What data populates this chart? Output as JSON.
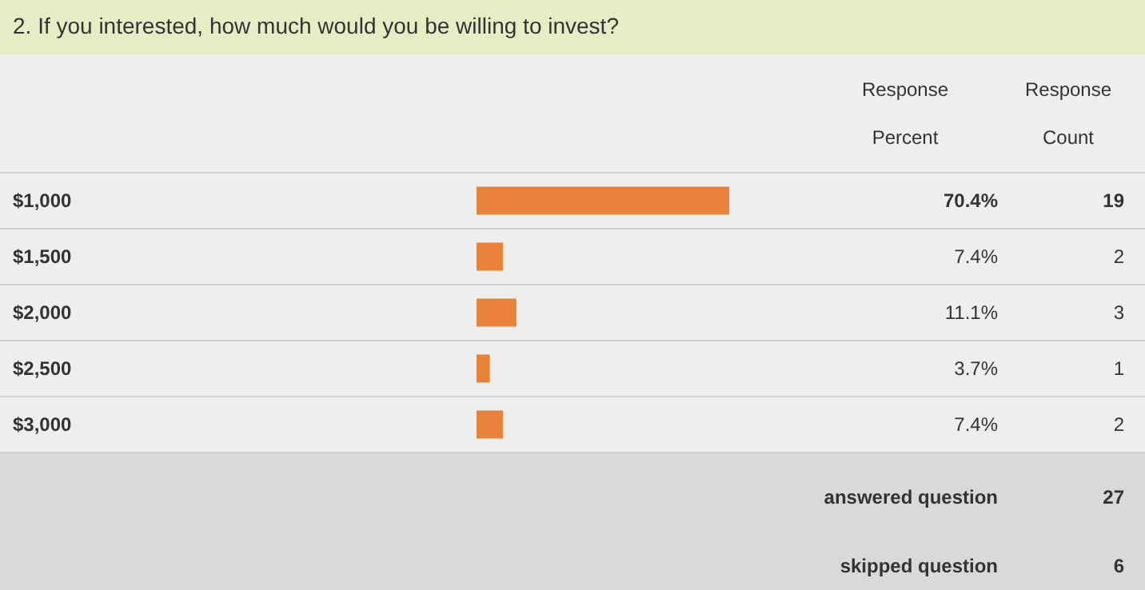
{
  "chart_data": {
    "type": "bar",
    "orientation": "horizontal",
    "title": "2. If you interested, how much would you be willing to invest?",
    "categories": [
      "$1,000",
      "$1,500",
      "$2,000",
      "$2,500",
      "$3,000"
    ],
    "values": [
      70.4,
      7.4,
      11.1,
      3.7,
      7.4
    ],
    "value_labels": [
      "70.4%",
      "7.4%",
      "11.1%",
      "3.7%",
      "7.4%"
    ],
    "color": "#e8823a",
    "annotations": [
      "Response Percent",
      "Response Count",
      "19",
      "2",
      "3",
      "1",
      "2",
      "answered question",
      "27",
      "skipped question",
      "6"
    ]
  }
}
